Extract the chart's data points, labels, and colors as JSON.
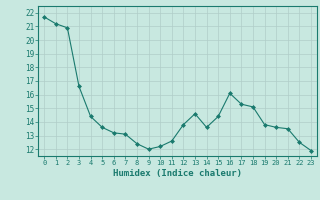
{
  "x": [
    0,
    1,
    2,
    3,
    4,
    5,
    6,
    7,
    8,
    9,
    10,
    11,
    12,
    13,
    14,
    15,
    16,
    17,
    18,
    19,
    20,
    21,
    22,
    23
  ],
  "y": [
    21.7,
    21.2,
    20.9,
    16.6,
    14.4,
    13.6,
    13.2,
    13.1,
    12.4,
    12.0,
    12.2,
    12.6,
    13.8,
    14.6,
    13.6,
    14.4,
    16.1,
    15.3,
    15.1,
    13.8,
    13.6,
    13.5,
    12.5,
    11.9
  ],
  "line_color": "#1a7a6e",
  "marker": "D",
  "marker_size": 2,
  "bg_color": "#c8e8e0",
  "grid_color": "#b0cdc8",
  "tick_color": "#1a7a6e",
  "label_color": "#1a7a6e",
  "xlabel": "Humidex (Indice chaleur)",
  "ylim": [
    11.5,
    22.5
  ],
  "xlim": [
    -0.5,
    23.5
  ],
  "yticks": [
    12,
    13,
    14,
    15,
    16,
    17,
    18,
    19,
    20,
    21,
    22
  ],
  "xticks": [
    0,
    1,
    2,
    3,
    4,
    5,
    6,
    7,
    8,
    9,
    10,
    11,
    12,
    13,
    14,
    15,
    16,
    17,
    18,
    19,
    20,
    21,
    22,
    23
  ]
}
